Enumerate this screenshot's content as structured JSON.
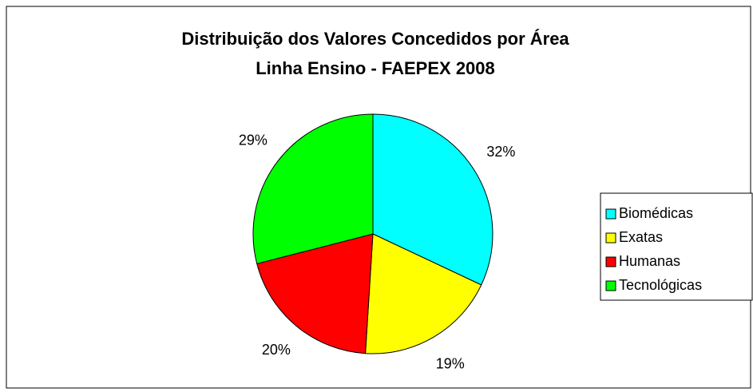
{
  "chart_data": {
    "type": "pie",
    "title": [
      "Distribuição dos Valores Concedidos por Área",
      "Linha Ensino  - FAEPEX 2008"
    ],
    "categories": [
      "Biomédicas",
      "Exatas",
      "Humanas",
      "Tecnológicas"
    ],
    "values": [
      32,
      19,
      20,
      29
    ],
    "value_labels": [
      "32%",
      "19%",
      "20%",
      "29%"
    ],
    "colors": [
      "#00ffff",
      "#ffff00",
      "#ff0000",
      "#00ff00"
    ],
    "legend": "right"
  }
}
